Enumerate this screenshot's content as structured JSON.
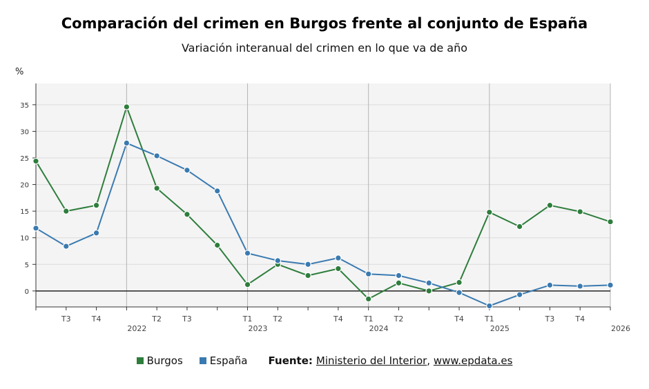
{
  "chart_data": {
    "type": "line",
    "title": "Comparación del crimen en Burgos frente al conjunto de España",
    "subtitle": "Variación interanual del crimen en lo que va de año",
    "ylabel": "%",
    "ylim": [
      -3,
      39
    ],
    "yticks": [
      0,
      5,
      10,
      15,
      20,
      25,
      30,
      35
    ],
    "x_points": 20,
    "x_tick_labels": [
      {
        "i": 1,
        "label": "T3"
      },
      {
        "i": 2,
        "label": "T4"
      },
      {
        "i": 4,
        "label": "T2"
      },
      {
        "i": 5,
        "label": "T3"
      },
      {
        "i": 7,
        "label": "T1"
      },
      {
        "i": 8,
        "label": "T2"
      },
      {
        "i": 10,
        "label": "T4"
      },
      {
        "i": 11,
        "label": "T1"
      },
      {
        "i": 12,
        "label": "T2"
      },
      {
        "i": 14,
        "label": "T4"
      },
      {
        "i": 15,
        "label": "T1"
      },
      {
        "i": 17,
        "label": "T3"
      },
      {
        "i": 18,
        "label": "T4"
      }
    ],
    "year_labels": [
      {
        "i": 3,
        "label": "2022"
      },
      {
        "i": 7,
        "label": "2023"
      },
      {
        "i": 11,
        "label": "2024"
      },
      {
        "i": 15,
        "label": "2025"
      },
      {
        "i": 19,
        "label": "2026"
      }
    ],
    "year_lines": [
      3,
      7,
      11,
      15,
      19
    ],
    "grid": true,
    "series": [
      {
        "name": "Burgos",
        "color": "#2e7d3c",
        "values": [
          24.4,
          15.0,
          16.1,
          34.6,
          19.3,
          14.4,
          8.6,
          1.2,
          5.0,
          2.9,
          4.2,
          -1.5,
          1.5,
          0.0,
          1.6,
          14.8,
          12.1,
          16.1,
          14.9,
          13.0
        ]
      },
      {
        "name": "España",
        "color": "#3a7ab0",
        "values": [
          11.8,
          8.4,
          10.9,
          27.8,
          25.4,
          22.7,
          18.8,
          7.1,
          5.7,
          5.0,
          6.2,
          3.2,
          2.9,
          1.5,
          -0.3,
          -2.8,
          -0.7,
          1.1,
          0.9,
          1.1
        ]
      }
    ]
  },
  "legend": {
    "burgos": "Burgos",
    "espana": "España",
    "burgos_color": "#2e7d3c",
    "espana_color": "#3a7ab0"
  },
  "source": {
    "label": "Fuente:",
    "name": "Ministerio del Interior",
    "separator": ",",
    "url": "www.epdata.es"
  }
}
